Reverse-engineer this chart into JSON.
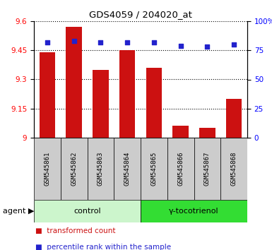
{
  "title": "GDS4059 / 204020_at",
  "samples": [
    "GSM545861",
    "GSM545862",
    "GSM545863",
    "GSM545864",
    "GSM545865",
    "GSM545866",
    "GSM545867",
    "GSM545868"
  ],
  "red_values": [
    9.44,
    9.57,
    9.35,
    9.45,
    9.36,
    9.06,
    9.05,
    9.2
  ],
  "blue_values": [
    82,
    83,
    82,
    82,
    82,
    79,
    78,
    80
  ],
  "ylim_left": [
    9.0,
    9.6
  ],
  "ylim_right": [
    0,
    100
  ],
  "yticks_left": [
    9.0,
    9.15,
    9.3,
    9.45,
    9.6
  ],
  "yticks_right": [
    0,
    25,
    50,
    75,
    100
  ],
  "ytick_labels_left": [
    "9",
    "9.15",
    "9.3",
    "9.45",
    "9.6"
  ],
  "ytick_labels_right": [
    "0",
    "25",
    "50",
    "75",
    "100%"
  ],
  "groups": [
    {
      "label": "control",
      "indices": [
        0,
        1,
        2,
        3
      ],
      "color": "#ccf5cc"
    },
    {
      "label": "γ-tocotrienol",
      "indices": [
        4,
        5,
        6,
        7
      ],
      "color": "#33dd33"
    }
  ],
  "bar_color": "#cc1111",
  "dot_color": "#2222cc",
  "bar_width": 0.6,
  "legend_items": [
    {
      "color": "#cc1111",
      "label": "transformed count"
    },
    {
      "color": "#2222cc",
      "label": "percentile rank within the sample"
    }
  ]
}
